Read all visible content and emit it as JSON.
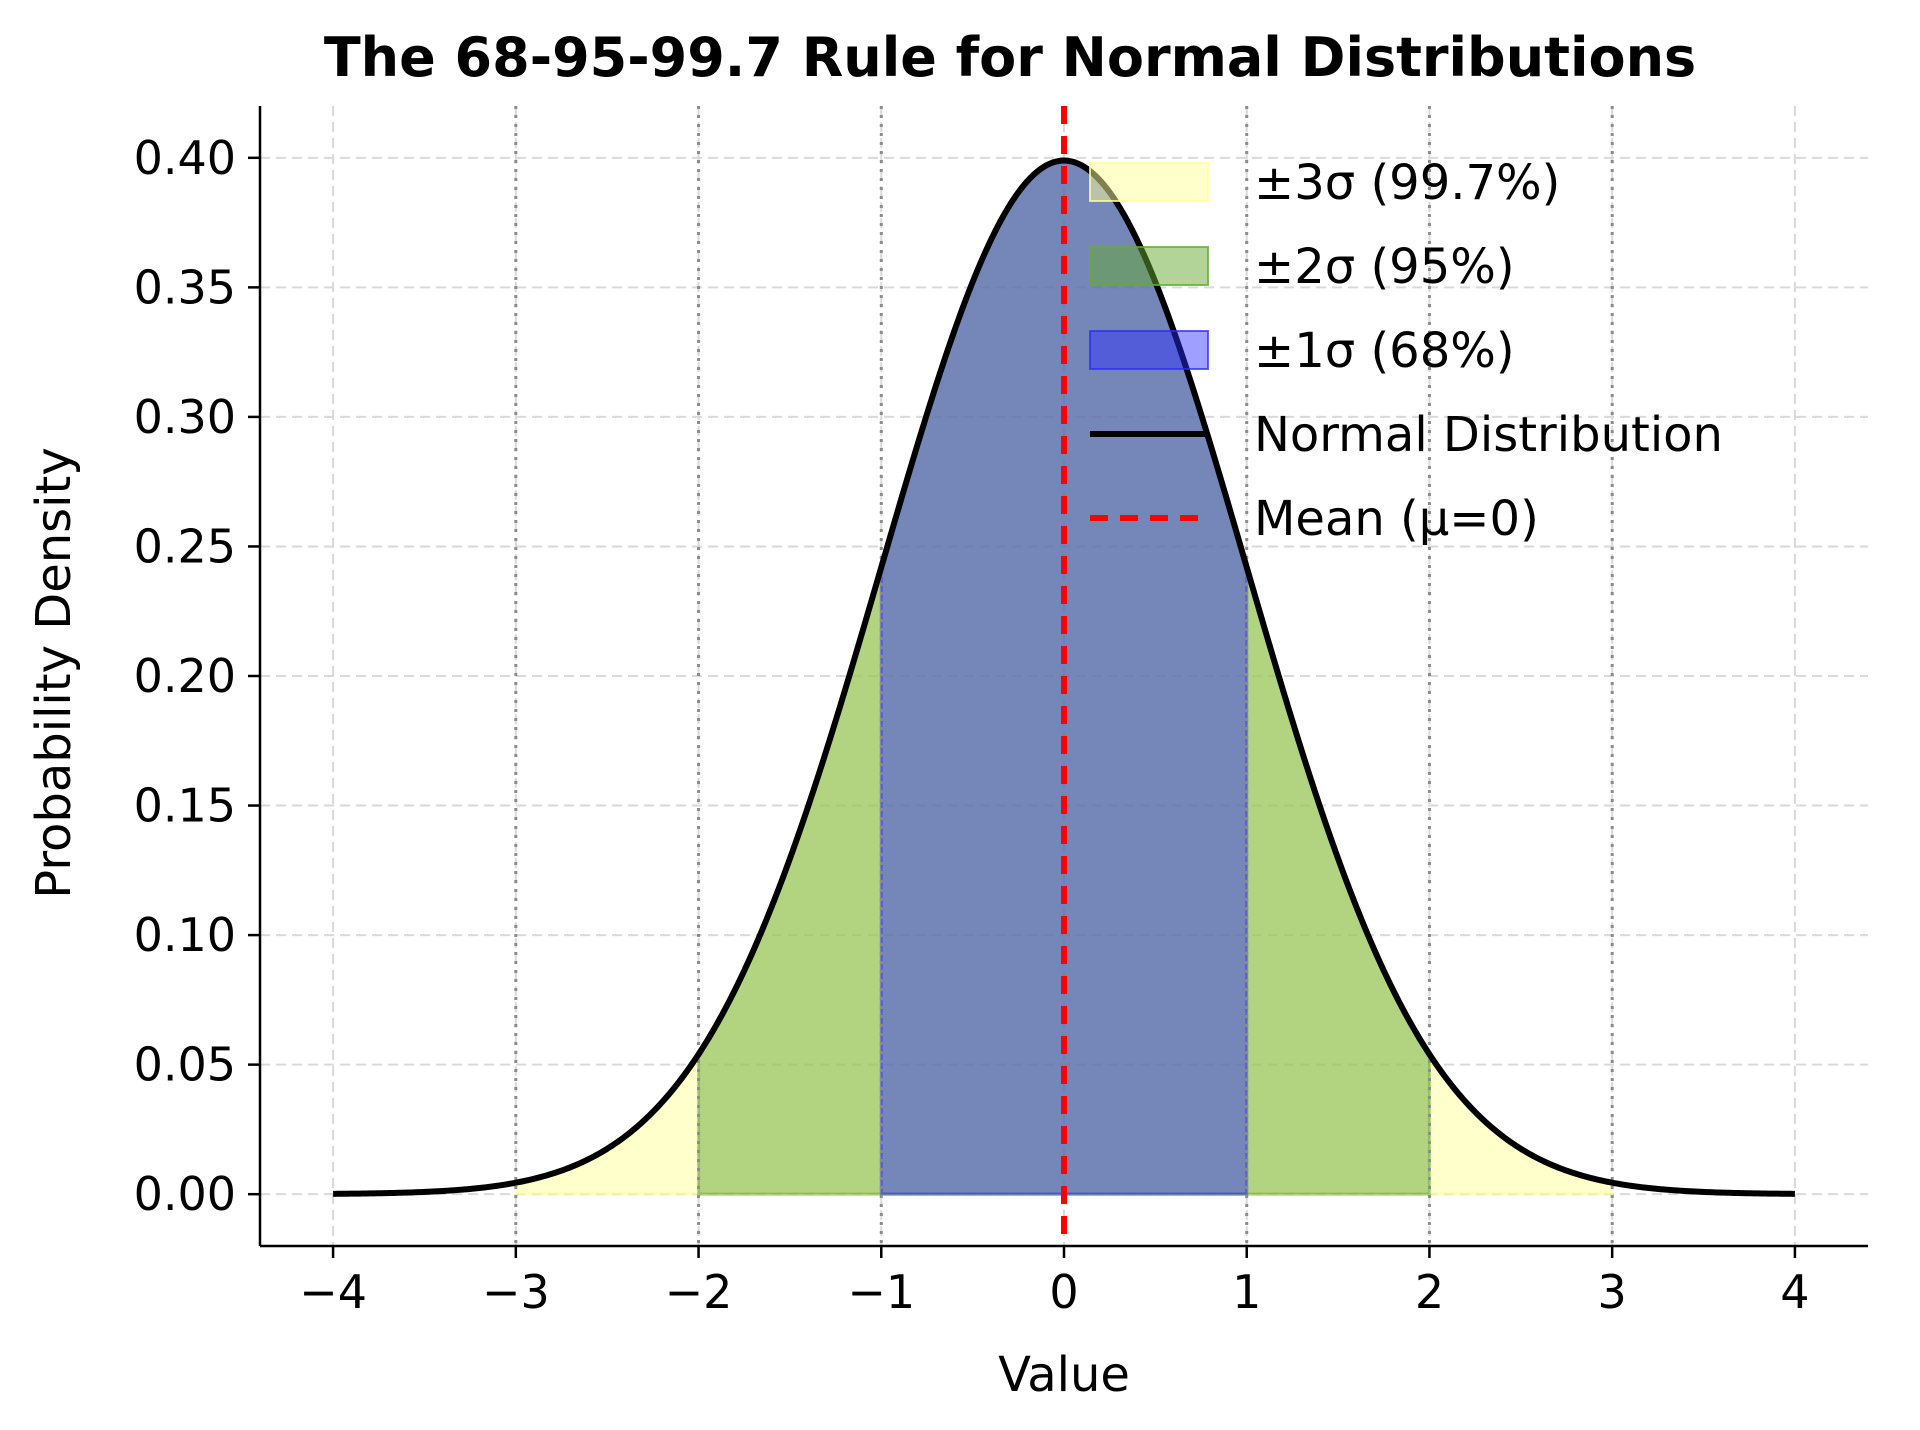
{
  "chart_data": {
    "type": "area",
    "title": "The 68-95-99.7 Rule for Normal Distributions",
    "xlabel": "Value",
    "ylabel": "Probability Density",
    "xlim": [
      -4.4,
      4.4
    ],
    "ylim": [
      -0.02,
      0.42
    ],
    "x_ticks": [
      -4,
      -3,
      -2,
      -1,
      0,
      1,
      2,
      3,
      4
    ],
    "x_tick_labels": [
      "−4",
      "−3",
      "−2",
      "−1",
      "0",
      "1",
      "2",
      "3",
      "4"
    ],
    "y_ticks": [
      0.0,
      0.05,
      0.1,
      0.15,
      0.2,
      0.25,
      0.3,
      0.35,
      0.4
    ],
    "y_tick_labels": [
      "0.00",
      "0.05",
      "0.10",
      "0.15",
      "0.20",
      "0.25",
      "0.30",
      "0.35",
      "0.40"
    ],
    "grid": true,
    "sigma_reference_lines": [
      -3,
      -2,
      -1,
      1,
      2,
      3
    ],
    "distribution": {
      "name": "Normal Distribution",
      "mean": 0,
      "std": 1,
      "x_range": [
        -4,
        4
      ],
      "color": "#000000"
    },
    "bands": [
      {
        "name": "±3σ (99.7%)",
        "from": -3,
        "to": 3,
        "color": "#ffff99",
        "alpha": 0.5
      },
      {
        "name": "±2σ (95%)",
        "from": -2,
        "to": 2,
        "color": "#66aa33",
        "alpha": 0.5
      },
      {
        "name": "±1σ (68%)",
        "from": -1,
        "to": 1,
        "color": "#2b2bff",
        "alpha": 0.45
      }
    ],
    "mean_line": {
      "name": "Mean (μ=0)",
      "x": 0,
      "color": "#ff0000"
    },
    "legend": {
      "position": "top-right",
      "entries": [
        "±3σ (99.7%)",
        "±2σ (95%)",
        "±1σ (68%)",
        "Normal Distribution",
        "Mean (μ=0)"
      ]
    }
  }
}
